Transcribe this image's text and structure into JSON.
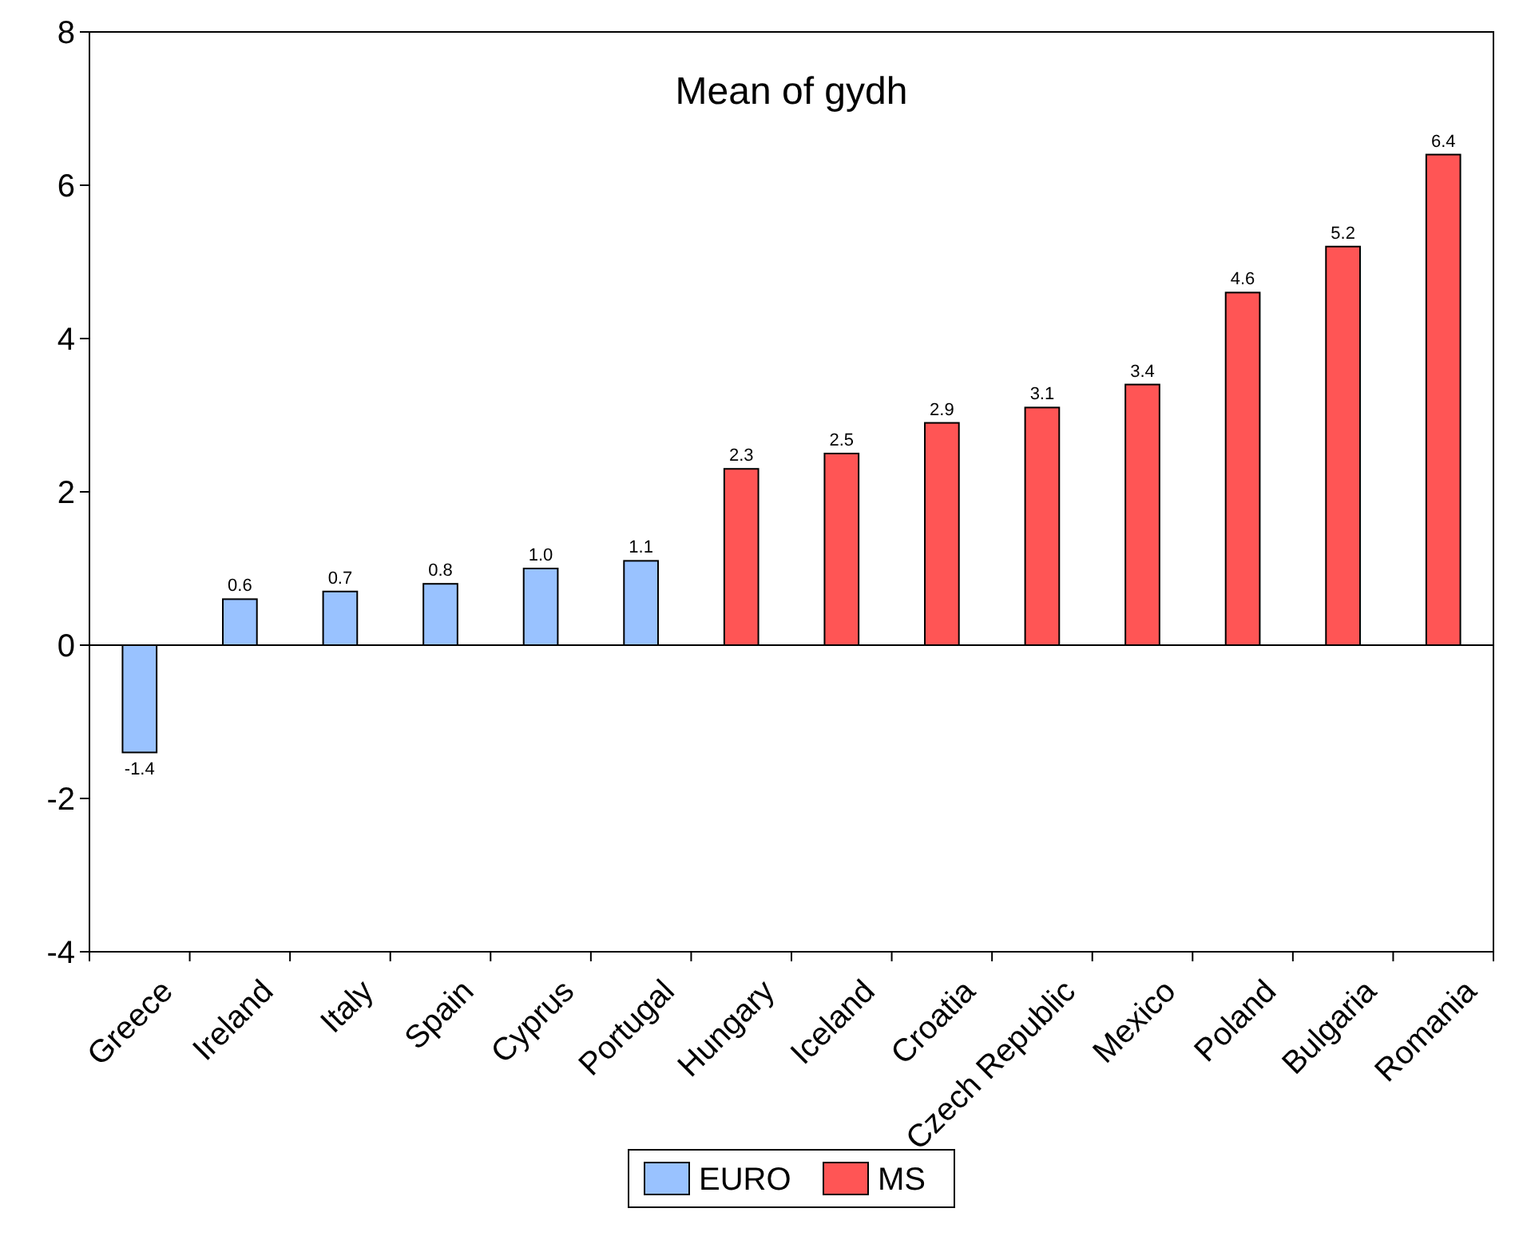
{
  "chart_data": {
    "type": "bar",
    "title": "Mean of gydh",
    "categories": [
      "Greece",
      "Ireland",
      "Italy",
      "Spain",
      "Cyprus",
      "Portugal",
      "Hungary",
      "Iceland",
      "Croatia",
      "Czech Republic",
      "Mexico",
      "Poland",
      "Bulgaria",
      "Romania"
    ],
    "series": [
      {
        "name": "EURO",
        "color": "#99c2ff",
        "values": [
          -1.4,
          0.6,
          0.7,
          0.8,
          1.0,
          1.1,
          null,
          null,
          null,
          null,
          null,
          null,
          null,
          null
        ],
        "value_labels": [
          "-1.4",
          "0.6",
          "0.7",
          "0.8",
          "1.0",
          "1.1",
          null,
          null,
          null,
          null,
          null,
          null,
          null,
          null
        ]
      },
      {
        "name": "MS",
        "color": "#ff5555",
        "values": [
          null,
          null,
          null,
          null,
          null,
          null,
          2.3,
          2.5,
          2.9,
          3.1,
          3.4,
          4.6,
          5.2,
          6.4
        ],
        "value_labels": [
          null,
          null,
          null,
          null,
          null,
          null,
          "2.3",
          "2.5",
          "2.9",
          "3.1",
          "3.4",
          "4.6",
          "5.2",
          "6.4"
        ]
      }
    ],
    "ylim": [
      -4,
      8
    ],
    "yticks": [
      -4,
      -2,
      0,
      2,
      4,
      6,
      8
    ],
    "legend": "bottom"
  }
}
